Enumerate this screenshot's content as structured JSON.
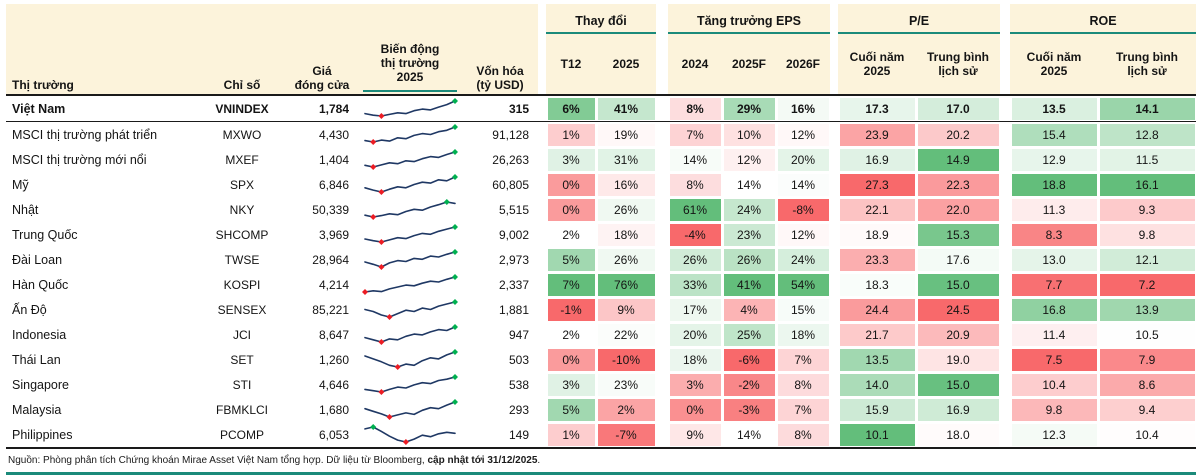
{
  "colors": {
    "header_bg": "#fcf3db",
    "accent_teal": "#1b8a7a",
    "spark_line": "#1f3864",
    "marker_low": "#ec1c24",
    "marker_high": "#00b050",
    "cond_green": "#63be7b",
    "cond_red": "#f8696b",
    "header_border": "#1a1a1a"
  },
  "chart_data": {
    "type": "table",
    "columns": {
      "market": "Thị trường",
      "index": "Chỉ số",
      "price": "Giá\nđóng cửa",
      "volatility": "Biến động\nthị trường\n2025",
      "mcap": "Vốn hóa\n(tỷ USD)",
      "groups": [
        {
          "label": "Thay đổi",
          "subs": [
            "T12",
            "2025"
          ]
        },
        {
          "label": "Tăng trưởng EPS",
          "subs": [
            "2024",
            "2025F",
            "2026F"
          ]
        },
        {
          "label": "P/E",
          "subs": [
            "Cuối năm\n2025",
            "Trung bình\nlịch sử"
          ]
        },
        {
          "label": "ROE",
          "subs": [
            "Cuối năm\n2025",
            "Trung bình\nlịch sử"
          ]
        }
      ]
    },
    "rows": [
      {
        "market": "Việt Nam",
        "index": "VNINDEX",
        "price": "1,784",
        "mcap": "315",
        "t12": "6%",
        "y2025": "41%",
        "eps2024": "8%",
        "eps2025f": "29%",
        "eps2026f": "16%",
        "pe": "17.3",
        "pe_hist": "17.0",
        "roe": "13.5",
        "roe_hist": "14.1",
        "bold": true,
        "spark": [
          30,
          22,
          18,
          26,
          34,
          30,
          44,
          52,
          48,
          62,
          74,
          92
        ]
      },
      {
        "market": "MSCI thị trường phát triển",
        "index": "MXWO",
        "price": "4,430",
        "mcap": "91,128",
        "t12": "1%",
        "y2025": "19%",
        "eps2024": "7%",
        "eps2025f": "10%",
        "eps2026f": "12%",
        "pe": "23.9",
        "pe_hist": "20.2",
        "roe": "15.4",
        "roe_hist": "12.8",
        "bold": false,
        "spark": [
          28,
          22,
          30,
          26,
          40,
          36,
          50,
          58,
          54,
          66,
          72,
          86
        ]
      },
      {
        "market": "MSCI thị trường mới nổi",
        "index": "MXEF",
        "price": "1,404",
        "mcap": "26,263",
        "t12": "3%",
        "y2025": "31%",
        "eps2024": "14%",
        "eps2025f": "12%",
        "eps2026f": "20%",
        "pe": "16.9",
        "pe_hist": "14.9",
        "roe": "12.9",
        "roe_hist": "11.5",
        "bold": false,
        "spark": [
          26,
          18,
          28,
          38,
          34,
          48,
          44,
          58,
          68,
          64,
          78,
          90
        ]
      },
      {
        "market": "Mỹ",
        "index": "SPX",
        "price": "6,846",
        "mcap": "60,805",
        "t12": "0%",
        "y2025": "16%",
        "eps2024": "8%",
        "eps2025f": "14%",
        "eps2026f": "14%",
        "pe": "27.3",
        "pe_hist": "22.3",
        "roe": "18.8",
        "roe_hist": "16.1",
        "bold": false,
        "spark": [
          38,
          28,
          20,
          32,
          42,
          38,
          52,
          62,
          58,
          72,
          68,
          84
        ]
      },
      {
        "market": "Nhật",
        "index": "NKY",
        "price": "50,339",
        "mcap": "5,515",
        "t12": "0%",
        "y2025": "26%",
        "eps2024": "61%",
        "eps2025f": "24%",
        "eps2026f": "-8%",
        "pe": "22.1",
        "pe_hist": "22.0",
        "roe": "11.3",
        "roe_hist": "9.3",
        "bold": false,
        "spark": [
          28,
          20,
          26,
          34,
          30,
          44,
          54,
          50,
          64,
          74,
          86,
          80
        ]
      },
      {
        "market": "Trung Quốc",
        "index": "SHCOMP",
        "price": "3,969",
        "mcap": "9,002",
        "t12": "2%",
        "y2025": "18%",
        "eps2024": "-4%",
        "eps2025f": "23%",
        "eps2026f": "12%",
        "pe": "18.9",
        "pe_hist": "15.3",
        "roe": "8.3",
        "roe_hist": "9.8",
        "bold": false,
        "spark": [
          34,
          26,
          20,
          30,
          40,
          36,
          50,
          60,
          56,
          70,
          80,
          90
        ]
      },
      {
        "market": "Đài Loan",
        "index": "TWSE",
        "price": "28,964",
        "mcap": "2,973",
        "t12": "5%",
        "y2025": "26%",
        "eps2024": "26%",
        "eps2025f": "26%",
        "eps2026f": "24%",
        "pe": "23.3",
        "pe_hist": "17.6",
        "roe": "13.0",
        "roe_hist": "12.1",
        "bold": false,
        "spark": [
          44,
          34,
          22,
          40,
          50,
          46,
          60,
          56,
          70,
          66,
          78,
          88
        ]
      },
      {
        "market": "Hàn Quốc",
        "index": "KOSPI",
        "price": "4,214",
        "mcap": "2,337",
        "t12": "7%",
        "y2025": "76%",
        "eps2024": "33%",
        "eps2025f": "41%",
        "eps2026f": "54%",
        "pe": "18.3",
        "pe_hist": "15.0",
        "roe": "7.7",
        "roe_hist": "7.2",
        "bold": false,
        "spark": [
          18,
          24,
          20,
          34,
          44,
          54,
          50,
          64,
          74,
          70,
          84,
          96
        ]
      },
      {
        "market": "Ấn Độ",
        "index": "SENSEX",
        "price": "85,221",
        "mcap": "1,881",
        "t12": "-1%",
        "y2025": "9%",
        "eps2024": "17%",
        "eps2025f": "4%",
        "eps2026f": "15%",
        "pe": "24.4",
        "pe_hist": "24.5",
        "roe": "16.8",
        "roe_hist": "13.9",
        "bold": false,
        "spark": [
          46,
          40,
          30,
          24,
          34,
          44,
          40,
          50,
          46,
          56,
          62,
          68
        ]
      },
      {
        "market": "Indonesia",
        "index": "JCI",
        "price": "8,647",
        "mcap": "947",
        "t12": "2%",
        "y2025": "22%",
        "eps2024": "20%",
        "eps2025f": "25%",
        "eps2026f": "18%",
        "pe": "21.7",
        "pe_hist": "20.9",
        "roe": "11.4",
        "roe_hist": "10.5",
        "bold": false,
        "spark": [
          38,
          28,
          18,
          32,
          28,
          44,
          54,
          50,
          64,
          74,
          70,
          86
        ]
      },
      {
        "market": "Thái Lan",
        "index": "SET",
        "price": "1,260",
        "mcap": "503",
        "t12": "0%",
        "y2025": "-10%",
        "eps2024": "18%",
        "eps2025f": "-6%",
        "eps2026f": "7%",
        "pe": "13.5",
        "pe_hist": "19.0",
        "roe": "7.5",
        "roe_hist": "7.9",
        "bold": false,
        "spark": [
          58,
          48,
          38,
          26,
          20,
          30,
          26,
          42,
          52,
          48,
          62,
          72
        ]
      },
      {
        "market": "Singapore",
        "index": "STI",
        "price": "4,646",
        "mcap": "538",
        "t12": "3%",
        "y2025": "23%",
        "eps2024": "3%",
        "eps2025f": "-2%",
        "eps2026f": "8%",
        "pe": "14.0",
        "pe_hist": "15.0",
        "roe": "10.4",
        "roe_hist": "8.6",
        "bold": false,
        "spark": [
          34,
          28,
          22,
          34,
          44,
          40,
          54,
          64,
          60,
          74,
          80,
          90
        ]
      },
      {
        "market": "Malaysia",
        "index": "FBMKLCI",
        "price": "1,680",
        "mcap": "293",
        "t12": "5%",
        "y2025": "2%",
        "eps2024": "0%",
        "eps2025f": "-3%",
        "eps2026f": "7%",
        "pe": "15.9",
        "pe_hist": "16.9",
        "roe": "9.8",
        "roe_hist": "9.4",
        "bold": false,
        "spark": [
          52,
          42,
          32,
          20,
          28,
          36,
          30,
          46,
          56,
          52,
          66,
          78
        ]
      },
      {
        "market": "Philippines",
        "index": "PCOMP",
        "price": "6,053",
        "mcap": "149",
        "t12": "1%",
        "y2025": "-7%",
        "eps2024": "9%",
        "eps2025f": "14%",
        "eps2026f": "8%",
        "pe": "10.1",
        "pe_hist": "18.0",
        "roe": "12.3",
        "roe_hist": "10.4",
        "bold": false,
        "spark": [
          72,
          80,
          62,
          42,
          26,
          18,
          30,
          46,
          40,
          52,
          58,
          54
        ]
      }
    ]
  },
  "footer": {
    "text": "Nguồn: Phòng phân tích Chứng khoán Mirae Asset Việt Nam tổng hợp. Dữ liệu từ Bloomberg, ",
    "bold_text": "cập nhật tới 31/12/2025",
    "suffix": "."
  }
}
